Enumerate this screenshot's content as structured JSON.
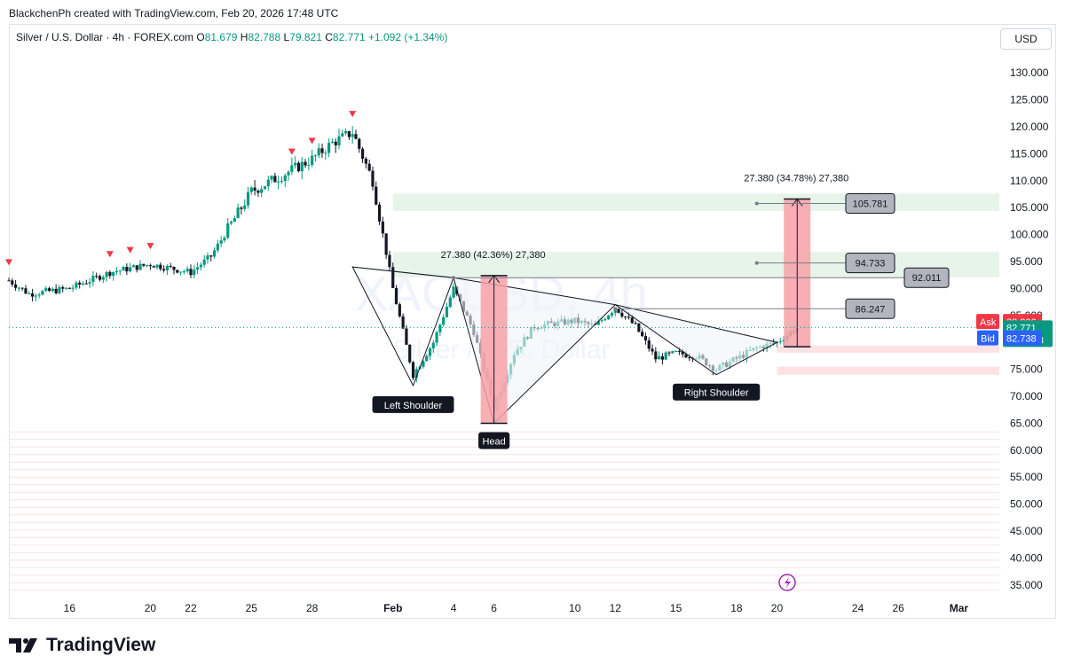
{
  "header": {
    "author_line": "BlackchenPh created with TradingView.com, Feb 20, 2026 17:48 UTC"
  },
  "legend": {
    "symbol": "Silver / U.S. Dollar · 4h · FOREX.com",
    "open_label": "O",
    "open": "81.679",
    "high_label": "H",
    "high": "82.788",
    "low_label": "L",
    "low": "79.821",
    "close_label": "C",
    "close": "82.771",
    "change": "+1.092 (+1.34%)"
  },
  "toolbar": {
    "currency": "USD"
  },
  "watermark": {
    "symbol": "XAGUSD, 4h",
    "name": "Silver / U.S. Dollar"
  },
  "colors": {
    "up": "#089981",
    "down": "#131722",
    "ask": "#f23645",
    "bid": "#2962ff",
    "target_zone": "#f7a1a7",
    "support_zone": "#e6f4ea",
    "resistance_lines": "#fde1e3"
  },
  "price_tags": {
    "ask_label": "Ask",
    "ask": "82.806",
    "last": "82.771",
    "countdown": "01:11:03",
    "bid_label": "Bid",
    "bid": "82.738"
  },
  "annotations": {
    "measure_left": "27.380 (42.36%) 27,380",
    "measure_right": "27.380 (34.78%) 27,380",
    "left_shoulder": "Left Shoulder",
    "head": "Head",
    "right_shoulder": "Right Shoulder",
    "level_1": "105.781",
    "level_2": "94.733",
    "level_3": "92.011",
    "level_4": "86.247"
  },
  "footer": {
    "brand": "TradingView"
  },
  "chart_data": {
    "type": "candlestick",
    "title": "Silver / U.S. Dollar · 4h · FOREX.com",
    "y_axis": {
      "ticks": [
        "130.000",
        "125.000",
        "120.000",
        "115.000",
        "110.000",
        "105.000",
        "100.000",
        "95.000",
        "90.000",
        "85.000",
        "80.000",
        "75.000",
        "70.000",
        "65.000",
        "60.000",
        "55.000",
        "50.000",
        "45.000",
        "40.000",
        "35.000"
      ],
      "range": [
        33,
        133
      ]
    },
    "x_axis": {
      "ticks": [
        "16",
        "20",
        "22",
        "25",
        "28",
        "Feb",
        "4",
        "6",
        "10",
        "12",
        "15",
        "18",
        "20",
        "24",
        "26",
        "Mar"
      ],
      "range": [
        "2026-01-13",
        "2026-03-03"
      ]
    },
    "price_path": [
      {
        "date": "2026-01-13",
        "price": 91.5
      },
      {
        "date": "2026-01-14",
        "price": 89
      },
      {
        "date": "2026-01-16",
        "price": 90
      },
      {
        "date": "2026-01-18",
        "price": 93
      },
      {
        "date": "2026-01-20",
        "price": 94.5
      },
      {
        "date": "2026-01-22",
        "price": 93
      },
      {
        "date": "2026-01-23",
        "price": 96
      },
      {
        "date": "2026-01-24",
        "price": 102
      },
      {
        "date": "2026-01-25",
        "price": 108
      },
      {
        "date": "2026-01-26",
        "price": 110
      },
      {
        "date": "2026-01-27",
        "price": 112
      },
      {
        "date": "2026-01-28",
        "price": 114
      },
      {
        "date": "2026-01-29",
        "price": 117
      },
      {
        "date": "2026-01-30",
        "price": 119
      },
      {
        "date": "2026-01-31",
        "price": 110
      },
      {
        "date": "2026-02-01",
        "price": 90
      },
      {
        "date": "2026-02-02",
        "price": 74
      },
      {
        "date": "2026-02-03",
        "price": 80
      },
      {
        "date": "2026-02-04",
        "price": 90
      },
      {
        "date": "2026-02-05",
        "price": 82
      },
      {
        "date": "2026-02-06",
        "price": 68
      },
      {
        "date": "2026-02-07",
        "price": 78
      },
      {
        "date": "2026-02-08",
        "price": 83
      },
      {
        "date": "2026-02-10",
        "price": 84
      },
      {
        "date": "2026-02-11",
        "price": 83
      },
      {
        "date": "2026-02-12",
        "price": 86.5
      },
      {
        "date": "2026-02-13",
        "price": 83
      },
      {
        "date": "2026-02-14",
        "price": 77
      },
      {
        "date": "2026-02-15",
        "price": 78
      },
      {
        "date": "2026-02-16",
        "price": 77.5
      },
      {
        "date": "2026-02-17",
        "price": 75
      },
      {
        "date": "2026-02-18",
        "price": 77
      },
      {
        "date": "2026-02-19",
        "price": 79
      },
      {
        "date": "2026-02-20",
        "price": 80
      },
      {
        "date": "2026-02-21",
        "price": 82.8
      }
    ],
    "high_markers_dates": [
      "2026-01-13",
      "2026-01-18",
      "2026-01-19",
      "2026-01-20",
      "2026-01-27",
      "2026-01-28",
      "2026-01-30"
    ],
    "pattern": {
      "left_shoulder": {
        "date": "2026-02-02",
        "price": 72
      },
      "head": {
        "date": "2026-02-06",
        "price": 65
      },
      "right_shoulder": {
        "date": "2026-02-17",
        "price": 74
      },
      "neckline": [
        {
          "date": "2026-01-30",
          "price": 94
        },
        {
          "date": "2026-02-04",
          "price": 92
        },
        {
          "date": "2026-02-12",
          "price": 87
        },
        {
          "date": "2026-02-20",
          "price": 80
        }
      ]
    },
    "measurements": [
      {
        "date": "2026-02-06",
        "from": 65,
        "to": 92.4,
        "label": "27.380 (42.36%) 27,380"
      },
      {
        "date": "2026-02-21",
        "from": 79.2,
        "to": 106.6,
        "label": "27.380 (34.78%) 27,380"
      }
    ],
    "levels": [
      105.781,
      94.733,
      92.011,
      86.247
    ],
    "zones": [
      {
        "from": 104.4,
        "to": 107.6,
        "kind": "support"
      },
      {
        "from": 92.1,
        "to": 96.8,
        "kind": "support"
      },
      {
        "from": 78.1,
        "to": 79.4,
        "kind": "resistance"
      },
      {
        "from": 74,
        "to": 75.5,
        "kind": "resistance"
      }
    ]
  }
}
